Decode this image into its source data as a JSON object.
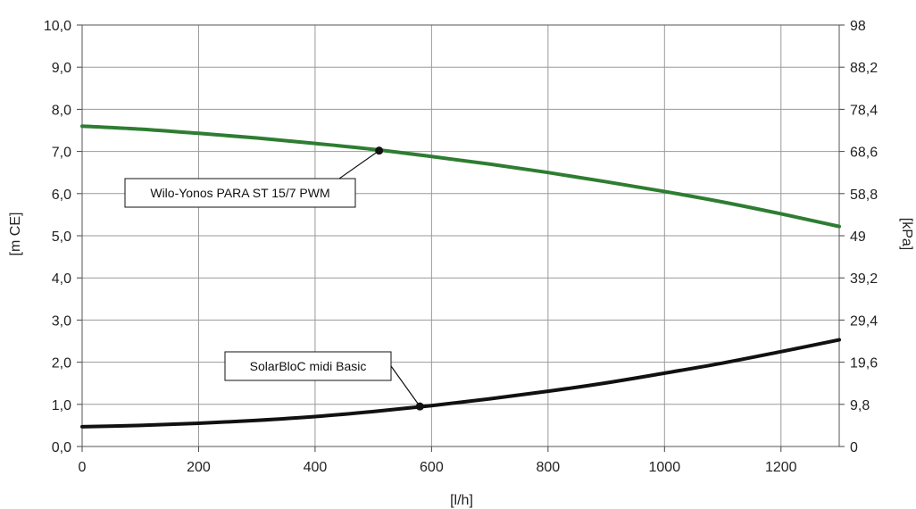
{
  "chart_data": {
    "type": "line",
    "xlabel": "[l/h]",
    "ylabel": "[m CE]",
    "y2label": "[kPa]",
    "xlim": [
      0,
      1300
    ],
    "ylim": [
      0,
      10
    ],
    "x_ticks": [
      "0",
      "200",
      "400",
      "600",
      "800",
      "1000",
      "1200"
    ],
    "y_ticks": [
      "0,0",
      "1,0",
      "2,0",
      "3,0",
      "4,0",
      "5,0",
      "6,0",
      "7,0",
      "8,0",
      "9,0",
      "10,0"
    ],
    "y2_ticks": [
      "0",
      "9,8",
      "19,6",
      "29,4",
      "39,2",
      "49",
      "58,8",
      "68,6",
      "78,4",
      "88,2",
      "98"
    ],
    "grid": true,
    "series": [
      {
        "name": "Wilo-Yonos PARA ST 15/7 PWM",
        "color": "#2e7d32",
        "x": [
          0,
          100,
          200,
          300,
          400,
          500,
          600,
          700,
          800,
          900,
          1000,
          1100,
          1200,
          1300
        ],
        "y": [
          7.6,
          7.53,
          7.43,
          7.32,
          7.19,
          7.05,
          6.88,
          6.7,
          6.5,
          6.28,
          6.05,
          5.8,
          5.52,
          5.22
        ]
      },
      {
        "name": "SolarBloC midi Basic",
        "color": "#111111",
        "x": [
          0,
          100,
          200,
          300,
          400,
          500,
          600,
          700,
          800,
          900,
          1000,
          1100,
          1200,
          1300
        ],
        "y": [
          0.47,
          0.5,
          0.55,
          0.62,
          0.71,
          0.83,
          0.97,
          1.13,
          1.31,
          1.51,
          1.74,
          1.98,
          2.25,
          2.53
        ]
      }
    ],
    "annotations": [
      {
        "text": "Wilo-Yonos PARA ST 15/7 PWM",
        "x": 510,
        "y": 7.02
      },
      {
        "text": "SolarBloC midi Basic",
        "x": 580,
        "y": 0.95
      }
    ]
  }
}
